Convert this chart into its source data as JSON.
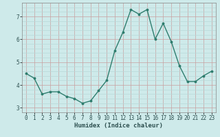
{
  "x": [
    0,
    1,
    2,
    3,
    4,
    5,
    6,
    7,
    8,
    9,
    10,
    11,
    12,
    13,
    14,
    15,
    16,
    17,
    18,
    19,
    20,
    21,
    22,
    23
  ],
  "y": [
    4.5,
    4.3,
    3.6,
    3.7,
    3.7,
    3.5,
    3.4,
    3.2,
    3.3,
    3.75,
    4.2,
    5.5,
    6.3,
    7.3,
    7.1,
    7.3,
    6.0,
    6.7,
    5.9,
    4.85,
    4.15,
    4.15,
    4.4,
    4.6
  ],
  "line_color": "#2e7d6e",
  "marker": "o",
  "marker_size": 1.8,
  "linewidth": 1.0,
  "xlabel": "Humidex (Indice chaleur)",
  "xlabel_fontsize": 6.5,
  "bg_color": "#ceeaea",
  "grid_minor_color": "#b8d8d8",
  "grid_major_color": "#c8a0a0",
  "tick_labelsize": 5.5,
  "ylim": [
    2.8,
    7.6
  ],
  "xlim": [
    -0.5,
    23.5
  ],
  "yticks": [
    3,
    4,
    5,
    6,
    7
  ],
  "xticks": [
    0,
    1,
    2,
    3,
    4,
    5,
    6,
    7,
    8,
    9,
    10,
    11,
    12,
    13,
    14,
    15,
    16,
    17,
    18,
    19,
    20,
    21,
    22,
    23
  ],
  "yminor_ticks": [
    2.8,
    3.2,
    3.4,
    3.6,
    3.8,
    4.2,
    4.4,
    4.6,
    4.8,
    5.2,
    5.4,
    5.6,
    5.8,
    6.2,
    6.4,
    6.6,
    6.8,
    7.2,
    7.4,
    7.6
  ]
}
